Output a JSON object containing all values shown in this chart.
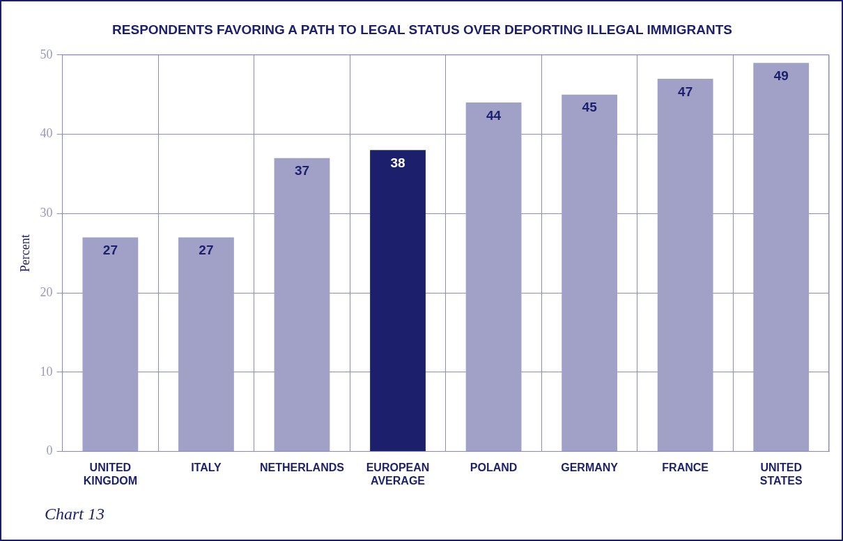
{
  "chart_data": {
    "type": "bar",
    "title": "RESPONDENTS FAVORING A PATH TO LEGAL STATUS OVER DEPORTING ILLEGAL IMMIGRANTS",
    "ylabel": "Percent",
    "categories": [
      "UNITED KINGDOM",
      "ITALY",
      "NETHERLANDS",
      "EUROPEAN AVERAGE",
      "POLAND",
      "GERMANY",
      "FRANCE",
      "UNITED STATES"
    ],
    "values": [
      27,
      27,
      37,
      38,
      44,
      45,
      47,
      49
    ],
    "colors": [
      "#a1a1c8",
      "#a1a1c8",
      "#a1a1c8",
      "#1c1f6b",
      "#a1a1c8",
      "#a1a1c8",
      "#a1a1c8",
      "#a1a1c8"
    ],
    "ylim": [
      0,
      50
    ],
    "yticks": [
      0,
      10,
      20,
      30,
      40,
      50
    ],
    "grid": true,
    "data_labels": true,
    "legend": false,
    "annotations": [
      "Chart 13"
    ]
  }
}
